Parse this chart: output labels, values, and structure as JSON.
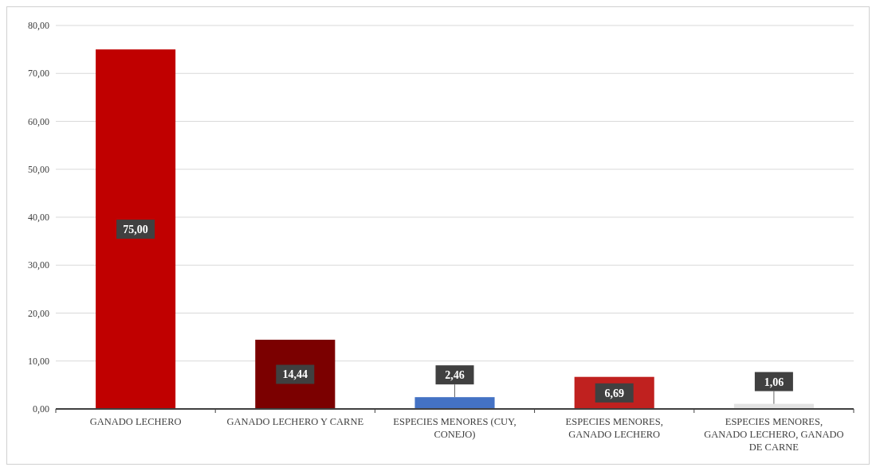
{
  "chart_data": {
    "type": "bar",
    "categories": [
      "GANADO LECHERO",
      "GANADO LECHERO Y CARNE",
      "ESPECIES MENORES (CUY, CONEJO)",
      "ESPECIES MENORES, GANADO LECHERO",
      "ESPECIES MENORES, GANADO LECHERO, GANADO DE CARNE"
    ],
    "values": [
      75,
      14.44,
      2.46,
      6.69,
      1.06
    ],
    "value_labels": [
      "75,00",
      "14,44",
      "2,46",
      "6,69",
      "1,06"
    ],
    "colors": [
      "#c00000",
      "#7b0000",
      "#4472c4",
      "#c0211f",
      "#e3e3e3"
    ],
    "ylim": [
      0,
      80
    ],
    "yticks": [
      {
        "value": 0,
        "label": "0,00"
      },
      {
        "value": 10,
        "label": "10,00"
      },
      {
        "value": 20,
        "label": "20,00"
      },
      {
        "value": 30,
        "label": "30,00"
      },
      {
        "value": 40,
        "label": "40,00"
      },
      {
        "value": 50,
        "label": "50,00"
      },
      {
        "value": 60,
        "label": "60,00"
      },
      {
        "value": 70,
        "label": "70,00"
      },
      {
        "value": 80,
        "label": "80,00"
      }
    ],
    "grid": "y"
  }
}
